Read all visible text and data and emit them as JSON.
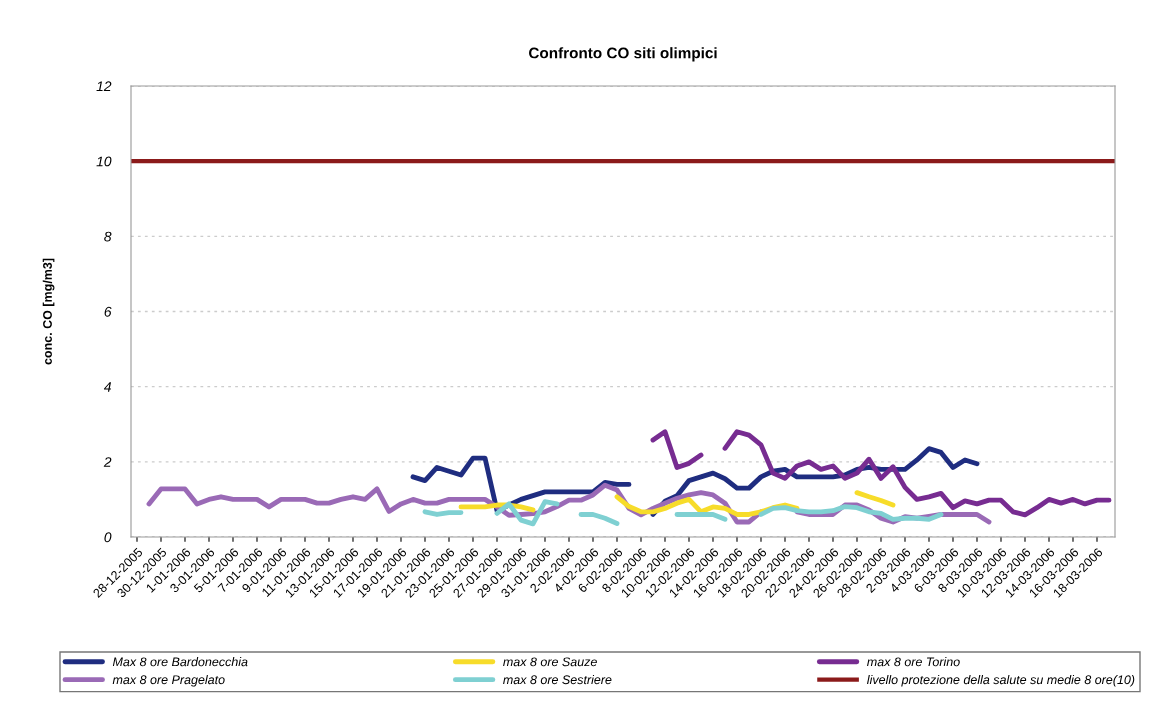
{
  "chart_data": {
    "type": "line",
    "title": "Confronto CO siti olimpici",
    "ylabel": "conc. CO [mg/m3]",
    "categories": [
      "28-12-2005",
      null,
      "30-12-2005",
      null,
      "1-01-2006",
      null,
      "3-01-2006",
      null,
      "5-01-2006",
      null,
      "7-01-2006",
      null,
      "9-01-2006",
      null,
      "11-01-2006",
      null,
      "13-01-2006",
      null,
      "15-01-2006",
      null,
      "17-01-2006",
      null,
      "19-01-2006",
      null,
      "21-01-2006",
      null,
      "23-01-2006",
      null,
      "25-01-2006",
      null,
      "27-01-2006",
      null,
      "29-01-2006",
      null,
      "31-01-2006",
      null,
      "2-02-2006",
      null,
      "4-02-2006",
      null,
      "6-02-2006",
      null,
      "8-02-2006",
      null,
      "10-02-2006",
      null,
      "12-02-2006",
      null,
      "14-02-2006",
      null,
      "16-02-2006",
      null,
      "18-02-2006",
      null,
      "20-02-2006",
      null,
      "22-02-2006",
      null,
      "24-02-2006",
      null,
      "26-02-2006",
      null,
      "28-02-2006",
      null,
      "2-03-2006",
      null,
      "4-03-2006",
      null,
      "6-03-2006",
      null,
      "8-03-2006",
      null,
      "10-03-2006",
      null,
      "12-03-2006",
      null,
      "14-03-2006",
      null,
      "16-03-2006",
      null,
      "18-03-2006",
      null
    ],
    "series": [
      {
        "name": "Max 8 ore Bardonecchia",
        "color": "#1f2d80",
        "values": [
          null,
          null,
          null,
          null,
          null,
          null,
          null,
          null,
          null,
          null,
          null,
          null,
          null,
          null,
          null,
          null,
          null,
          null,
          null,
          null,
          null,
          null,
          null,
          1.6,
          1.5,
          1.85,
          1.75,
          1.65,
          2.1,
          2.1,
          0.7,
          0.85,
          1.0,
          1.1,
          1.2,
          1.2,
          1.2,
          1.2,
          1.2,
          1.45,
          1.4,
          1.4,
          null,
          0.6,
          0.95,
          1.1,
          1.5,
          1.6,
          1.7,
          1.55,
          1.3,
          1.3,
          1.6,
          1.75,
          1.8,
          1.6,
          1.6,
          1.6,
          1.6,
          1.65,
          1.8,
          1.85,
          1.8,
          1.8,
          1.8,
          2.05,
          2.35,
          2.25,
          1.85,
          2.05,
          1.95,
          null,
          null,
          null,
          null,
          null,
          null,
          null,
          null,
          null,
          null,
          null
        ]
      },
      {
        "name": "max 8 ore Pragelato",
        "color": "#9a6ab6",
        "values": [
          null,
          0.88,
          1.28,
          1.28,
          1.28,
          0.88,
          1.0,
          1.07,
          1.0,
          1.0,
          1.0,
          0.8,
          1.0,
          1.0,
          1.0,
          0.9,
          0.9,
          1.0,
          1.07,
          1.0,
          1.28,
          0.68,
          0.88,
          1.0,
          0.9,
          0.9,
          1.0,
          1.0,
          1.0,
          1.0,
          0.8,
          0.58,
          0.6,
          0.62,
          0.67,
          0.81,
          0.98,
          0.98,
          1.12,
          1.38,
          1.25,
          0.76,
          0.59,
          0.76,
          0.9,
          1.03,
          1.12,
          1.18,
          1.12,
          0.9,
          0.4,
          0.4,
          0.67,
          null,
          null,
          0.67,
          0.6,
          0.6,
          0.6,
          0.85,
          0.85,
          0.72,
          0.5,
          0.4,
          0.54,
          0.5,
          0.55,
          0.6,
          0.6,
          0.6,
          0.6,
          0.4,
          null,
          null,
          null,
          null,
          null,
          null,
          null,
          null,
          null,
          null
        ]
      },
      {
        "name": "max 8 ore Sauze",
        "color": "#f7dc2a",
        "values": [
          null,
          null,
          null,
          null,
          null,
          null,
          null,
          null,
          null,
          null,
          null,
          null,
          null,
          null,
          null,
          null,
          null,
          null,
          null,
          null,
          null,
          null,
          null,
          null,
          null,
          null,
          null,
          0.8,
          0.8,
          0.8,
          0.85,
          0.85,
          0.8,
          0.72,
          null,
          null,
          null,
          null,
          null,
          null,
          1.07,
          0.81,
          0.67,
          0.67,
          0.76,
          0.9,
          1.0,
          0.67,
          0.8,
          0.76,
          0.6,
          0.6,
          0.67,
          0.78,
          0.85,
          0.76,
          null,
          null,
          null,
          null,
          1.18,
          1.07,
          0.97,
          0.85,
          null,
          null,
          null,
          null,
          null,
          null,
          null,
          null,
          null,
          null,
          null,
          null,
          null,
          null,
          null,
          null,
          null,
          null
        ]
      },
      {
        "name": "max 8 ore Sestriere",
        "color": "#7fd0d2",
        "values": [
          null,
          null,
          null,
          null,
          null,
          null,
          null,
          null,
          null,
          null,
          null,
          null,
          null,
          null,
          null,
          null,
          null,
          null,
          null,
          null,
          null,
          null,
          null,
          null,
          0.67,
          0.6,
          0.65,
          0.65,
          null,
          null,
          0.63,
          0.88,
          0.45,
          0.35,
          0.94,
          0.88,
          null,
          0.6,
          0.6,
          0.5,
          0.36,
          null,
          null,
          null,
          null,
          0.6,
          0.6,
          0.6,
          0.6,
          0.47,
          null,
          null,
          0.6,
          0.76,
          0.78,
          0.7,
          0.67,
          0.67,
          0.7,
          0.81,
          0.78,
          0.67,
          0.63,
          0.47,
          0.5,
          0.5,
          0.47,
          0.6,
          null,
          null,
          null,
          null,
          null,
          null,
          null,
          null,
          null,
          null,
          null,
          null,
          null,
          null
        ]
      },
      {
        "name": "max 8 ore Torino",
        "color": "#772c91",
        "values": [
          null,
          null,
          null,
          null,
          null,
          null,
          null,
          null,
          null,
          null,
          null,
          null,
          null,
          null,
          null,
          null,
          null,
          null,
          null,
          null,
          null,
          null,
          null,
          null,
          null,
          null,
          null,
          null,
          null,
          null,
          null,
          null,
          null,
          null,
          null,
          null,
          null,
          null,
          null,
          null,
          null,
          null,
          null,
          2.58,
          2.8,
          1.85,
          1.96,
          2.18,
          null,
          2.36,
          2.8,
          2.71,
          2.45,
          1.7,
          1.56,
          1.89,
          2.0,
          1.8,
          1.89,
          1.56,
          1.7,
          2.07,
          1.56,
          1.87,
          1.32,
          1.0,
          1.07,
          1.16,
          0.78,
          0.96,
          0.88,
          0.98,
          0.98,
          0.67,
          0.59,
          0.78,
          1.0,
          0.9,
          1.0,
          0.88,
          0.98,
          0.98
        ]
      }
    ],
    "ref_lines": [
      {
        "axis": "y",
        "value": 10,
        "label": "livello protezione della salute su medie 8 ore(10)",
        "color": "#8b1a1a",
        "line_style": "solid"
      }
    ],
    "ylim": [
      0,
      12
    ],
    "yticks": [
      0,
      2,
      4,
      6,
      8,
      10,
      12
    ],
    "grid": "y",
    "legend": "bottom",
    "line_style": "solid",
    "marker": "none"
  }
}
